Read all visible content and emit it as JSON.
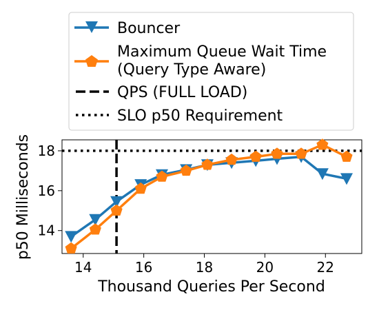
{
  "chart_data": {
    "type": "line",
    "xlabel": "Thousand Queries Per Second",
    "ylabel": "p50 Milliseconds",
    "xlim": [
      13.3,
      23.2
    ],
    "ylim": [
      12.85,
      18.55
    ],
    "xticks": [
      14,
      16,
      18,
      20,
      22
    ],
    "yticks": [
      14,
      16,
      18
    ],
    "grid": false,
    "legend_position": "top, above plot",
    "series": [
      {
        "name": "Bouncer",
        "color": "#1f77b4",
        "marker": "triangle-down",
        "x": [
          13.6,
          14.4,
          15.1,
          15.9,
          16.6,
          17.4,
          18.1,
          18.9,
          19.7,
          20.4,
          21.2,
          21.9,
          22.7
        ],
        "y": [
          13.7,
          14.55,
          15.45,
          16.3,
          16.8,
          17.05,
          17.3,
          17.4,
          17.5,
          17.6,
          17.7,
          16.85,
          16.6
        ]
      },
      {
        "name": "Maximum Queue Wait Time\n(Query Type Aware)",
        "color": "#ff7f0e",
        "marker": "pentagon",
        "x": [
          13.6,
          14.4,
          15.1,
          15.9,
          16.6,
          17.4,
          18.1,
          18.9,
          19.7,
          20.4,
          21.2,
          21.9,
          22.7
        ],
        "y": [
          13.1,
          14.05,
          15.0,
          16.1,
          16.7,
          17.0,
          17.3,
          17.55,
          17.7,
          17.85,
          17.85,
          18.3,
          17.7
        ]
      }
    ],
    "reference_lines": [
      {
        "name": "QPS (FULL LOAD)",
        "orientation": "vertical",
        "value": 15.1,
        "style": "dashed"
      },
      {
        "name": "SLO p50 Requirement",
        "orientation": "horizontal",
        "value": 18.0,
        "style": "dotted"
      }
    ]
  }
}
